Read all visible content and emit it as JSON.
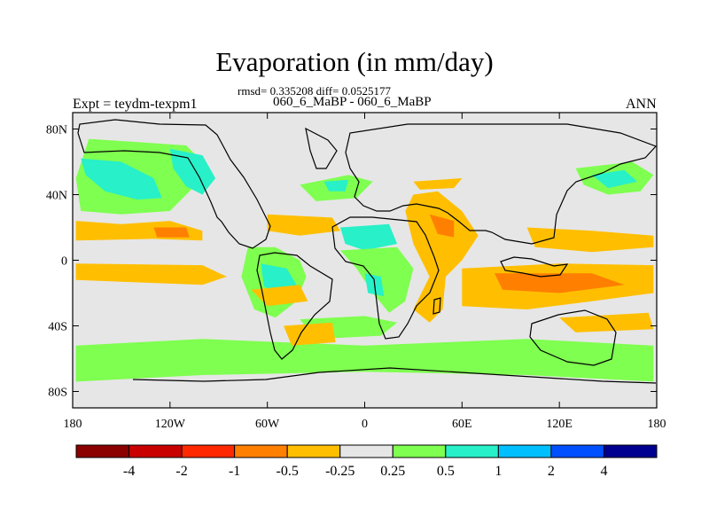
{
  "title": "Evaporation (in mm/day)",
  "stats": "rmsd= 0.335208 diff= 0.0525177",
  "case_line": "060_6_MaBP - 060_6_MaBP",
  "left_label": "Expt = teydm-texpm1",
  "right_label": "ANN",
  "chart_data": {
    "type": "heatmap",
    "projection": "cylindrical-equidistant",
    "xlim": [
      -180,
      180
    ],
    "ylim": [
      -90,
      90
    ],
    "x_ticks": [
      {
        "value": -180,
        "label": "180"
      },
      {
        "value": -120,
        "label": "120W"
      },
      {
        "value": -60,
        "label": "60W"
      },
      {
        "value": 0,
        "label": "0"
      },
      {
        "value": 60,
        "label": "60E"
      },
      {
        "value": 120,
        "label": "120E"
      },
      {
        "value": 180,
        "label": "180"
      }
    ],
    "y_ticks": [
      {
        "value": 80,
        "label": "80N"
      },
      {
        "value": 40,
        "label": "40N"
      },
      {
        "value": 0,
        "label": "0"
      },
      {
        "value": -40,
        "label": "40S"
      },
      {
        "value": -80,
        "label": "80S"
      }
    ],
    "colorbar": {
      "labels": [
        "-4",
        "-2",
        "-1",
        "-0.5",
        "-0.25",
        "0.25",
        "0.5",
        "1",
        "2",
        "4"
      ],
      "colors": [
        "#8b0000",
        "#c80000",
        "#ff2800",
        "#ff7f00",
        "#ffbf00",
        "#e6e6e6",
        "#7fff50",
        "#28f0c8",
        "#00bfff",
        "#0050ff",
        "#000090"
      ]
    },
    "regions": [
      {
        "color": "#7fff50",
        "points": [
          [
            -170,
            74
          ],
          [
            -140,
            72
          ],
          [
            -110,
            70
          ],
          [
            -100,
            60
          ],
          [
            -105,
            45
          ],
          [
            -120,
            30
          ],
          [
            -150,
            28
          ],
          [
            -175,
            30
          ],
          [
            -178,
            50
          ]
        ]
      },
      {
        "color": "#28f0c8",
        "points": [
          [
            -175,
            62
          ],
          [
            -150,
            60
          ],
          [
            -130,
            50
          ],
          [
            -125,
            38
          ],
          [
            -140,
            37
          ],
          [
            -160,
            42
          ],
          [
            -172,
            52
          ]
        ]
      },
      {
        "color": "#28f0c8",
        "points": [
          [
            -120,
            68
          ],
          [
            -100,
            64
          ],
          [
            -92,
            50
          ],
          [
            -100,
            40
          ],
          [
            -110,
            45
          ],
          [
            -118,
            56
          ]
        ]
      },
      {
        "color": "#7fff50",
        "points": [
          [
            -40,
            46
          ],
          [
            -10,
            52
          ],
          [
            5,
            48
          ],
          [
            -5,
            38
          ],
          [
            -30,
            36
          ]
        ]
      },
      {
        "color": "#28f0c8",
        "points": [
          [
            -25,
            48
          ],
          [
            -10,
            49
          ],
          [
            -12,
            42
          ],
          [
            -22,
            42
          ]
        ]
      },
      {
        "color": "#7fff50",
        "points": [
          [
            130,
            56
          ],
          [
            165,
            60
          ],
          [
            178,
            52
          ],
          [
            170,
            42
          ],
          [
            150,
            40
          ],
          [
            135,
            46
          ]
        ]
      },
      {
        "color": "#28f0c8",
        "points": [
          [
            140,
            52
          ],
          [
            160,
            55
          ],
          [
            168,
            48
          ],
          [
            150,
            44
          ]
        ]
      },
      {
        "color": "#7fff50",
        "points": [
          [
            -72,
            8
          ],
          [
            -55,
            8
          ],
          [
            -40,
            0
          ],
          [
            -36,
            -10
          ],
          [
            -42,
            -25
          ],
          [
            -55,
            -35
          ],
          [
            -68,
            -30
          ],
          [
            -76,
            -10
          ]
        ]
      },
      {
        "color": "#28f0c8",
        "points": [
          [
            -64,
            -2
          ],
          [
            -48,
            -5
          ],
          [
            -42,
            -15
          ],
          [
            -50,
            -22
          ],
          [
            -62,
            -16
          ]
        ]
      },
      {
        "color": "#28f0c8",
        "points": [
          [
            -15,
            20
          ],
          [
            15,
            22
          ],
          [
            20,
            10
          ],
          [
            0,
            6
          ],
          [
            -12,
            10
          ]
        ]
      },
      {
        "color": "#7fff50",
        "points": [
          [
            -15,
            6
          ],
          [
            20,
            8
          ],
          [
            30,
            -5
          ],
          [
            25,
            -25
          ],
          [
            15,
            -32
          ],
          [
            5,
            -20
          ],
          [
            -5,
            -5
          ]
        ]
      },
      {
        "color": "#28f0c8",
        "points": [
          [
            0,
            -8
          ],
          [
            10,
            -10
          ],
          [
            12,
            -22
          ],
          [
            2,
            -20
          ]
        ]
      },
      {
        "color": "#7fff50",
        "points": [
          [
            -40,
            -36
          ],
          [
            0,
            -34
          ],
          [
            20,
            -38
          ],
          [
            10,
            -46
          ],
          [
            -30,
            -48
          ]
        ]
      },
      {
        "color": "#7fff50",
        "points": [
          [
            -178,
            -52
          ],
          [
            -100,
            -48
          ],
          [
            0,
            -52
          ],
          [
            100,
            -48
          ],
          [
            178,
            -52
          ],
          [
            178,
            -74
          ],
          [
            100,
            -70
          ],
          [
            0,
            -68
          ],
          [
            -100,
            -70
          ],
          [
            -178,
            -74
          ]
        ]
      },
      {
        "color": "#ffbf00",
        "points": [
          [
            -178,
            24
          ],
          [
            -150,
            22
          ],
          [
            -120,
            24
          ],
          [
            -100,
            18
          ],
          [
            -100,
            12
          ],
          [
            -130,
            13
          ],
          [
            -178,
            12
          ]
        ]
      },
      {
        "color": "#ff7f00",
        "points": [
          [
            -130,
            20
          ],
          [
            -110,
            20
          ],
          [
            -108,
            14
          ],
          [
            -128,
            14
          ]
        ]
      },
      {
        "color": "#ffbf00",
        "points": [
          [
            -60,
            28
          ],
          [
            -20,
            26
          ],
          [
            -15,
            18
          ],
          [
            -40,
            15
          ],
          [
            -60,
            18
          ]
        ]
      },
      {
        "color": "#ffbf00",
        "points": [
          [
            -178,
            -2
          ],
          [
            -100,
            -3
          ],
          [
            -85,
            -10
          ],
          [
            -100,
            -15
          ],
          [
            -178,
            -12
          ]
        ]
      },
      {
        "color": "#ffbf00",
        "points": [
          [
            -70,
            -18
          ],
          [
            -40,
            -15
          ],
          [
            -35,
            -25
          ],
          [
            -60,
            -28
          ]
        ]
      },
      {
        "color": "#ffbf00",
        "points": [
          [
            -50,
            -40
          ],
          [
            -20,
            -38
          ],
          [
            -18,
            -50
          ],
          [
            -45,
            -52
          ]
        ]
      },
      {
        "color": "#ffbf00",
        "points": [
          [
            30,
            40
          ],
          [
            45,
            42
          ],
          [
            60,
            30
          ],
          [
            70,
            15
          ],
          [
            60,
            0
          ],
          [
            50,
            -10
          ],
          [
            48,
            -30
          ],
          [
            40,
            -38
          ],
          [
            30,
            -30
          ],
          [
            40,
            -10
          ],
          [
            30,
            10
          ],
          [
            25,
            30
          ]
        ]
      },
      {
        "color": "#ff7f00",
        "points": [
          [
            40,
            28
          ],
          [
            55,
            24
          ],
          [
            55,
            14
          ],
          [
            45,
            16
          ]
        ]
      },
      {
        "color": "#ffbf00",
        "points": [
          [
            60,
            -5
          ],
          [
            120,
            -2
          ],
          [
            178,
            -3
          ],
          [
            178,
            -20
          ],
          [
            140,
            -25
          ],
          [
            100,
            -30
          ],
          [
            60,
            -28
          ]
        ]
      },
      {
        "color": "#ff7f00",
        "points": [
          [
            80,
            -8
          ],
          [
            140,
            -8
          ],
          [
            160,
            -15
          ],
          [
            120,
            -20
          ],
          [
            85,
            -18
          ]
        ]
      },
      {
        "color": "#ffbf00",
        "points": [
          [
            100,
            20
          ],
          [
            140,
            18
          ],
          [
            178,
            15
          ],
          [
            178,
            8
          ],
          [
            140,
            5
          ],
          [
            105,
            8
          ]
        ]
      },
      {
        "color": "#ffbf00",
        "points": [
          [
            120,
            -35
          ],
          [
            175,
            -32
          ],
          [
            178,
            -42
          ],
          [
            130,
            -44
          ]
        ]
      },
      {
        "color": "#ffbf00",
        "points": [
          [
            30,
            48
          ],
          [
            60,
            50
          ],
          [
            55,
            44
          ],
          [
            34,
            43
          ]
        ]
      }
    ]
  }
}
